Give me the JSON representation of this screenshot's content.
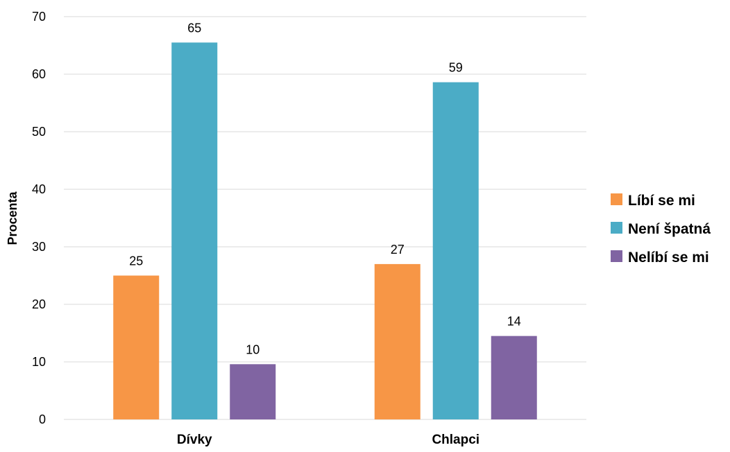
{
  "chart_data": {
    "type": "bar",
    "title": "",
    "xlabel": "",
    "ylabel": "Procenta",
    "ylim": [
      0,
      70
    ],
    "yticks": [
      0,
      10,
      20,
      30,
      40,
      50,
      60,
      70
    ],
    "grid": true,
    "legend_position": "right",
    "categories": [
      "Dívky",
      "Chlapci"
    ],
    "series": [
      {
        "name": "Líbí se mi",
        "color": "#F79646",
        "values": [
          25,
          27
        ]
      },
      {
        "name": "Není špatná",
        "color": "#4BACC6",
        "values": [
          65.5,
          58.6
        ]
      },
      {
        "name": "Nelíbí se mi",
        "color": "#8064A2",
        "values": [
          9.6,
          14.5
        ]
      }
    ],
    "data_labels": [
      [
        "25",
        "27"
      ],
      [
        "65",
        "59"
      ],
      [
        "10",
        "14"
      ]
    ]
  }
}
